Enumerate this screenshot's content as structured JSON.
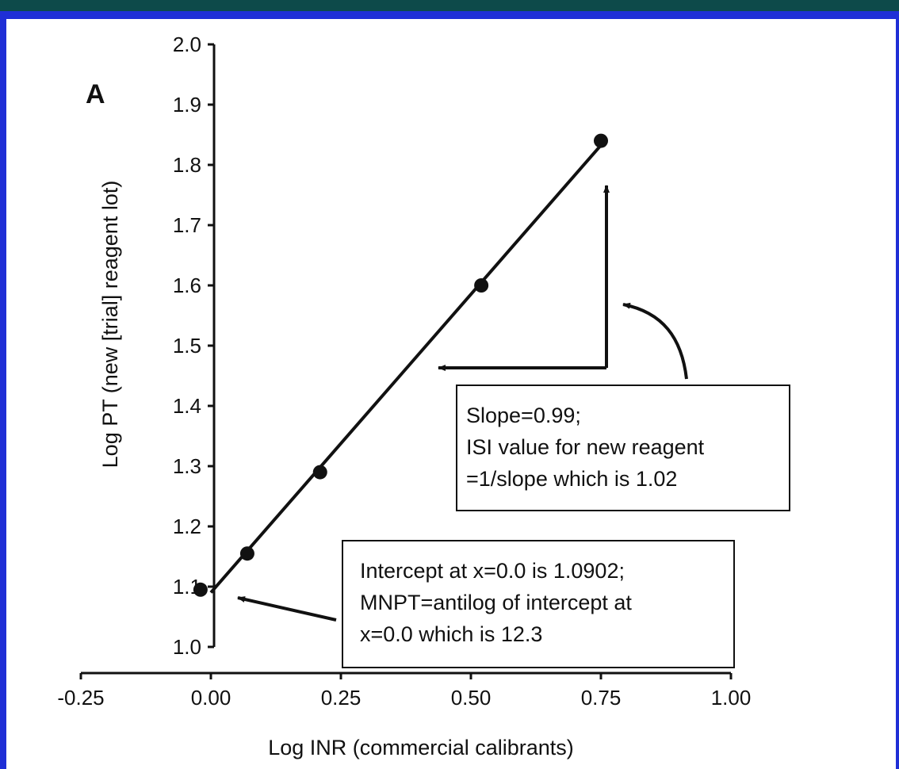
{
  "colors": {
    "frame_border": "#1f2fd6",
    "top_bar": "#0d4a4a",
    "ink": "#111111",
    "background": "#ffffff"
  },
  "chart_data": {
    "type": "scatter",
    "panel_label": "A",
    "title": "",
    "xlabel": "Log INR (commercial calibrants)",
    "ylabel": "Log PT (new [trial] reagent lot)",
    "xlim": [
      -0.25,
      1.0
    ],
    "ylim": [
      1.0,
      2.0
    ],
    "x_ticks": [
      -0.25,
      0.0,
      0.25,
      0.5,
      0.75,
      1.0
    ],
    "x_tick_labels": [
      "-0.25",
      "0.00",
      "0.25",
      "0.50",
      "0.75",
      "1.00"
    ],
    "y_ticks": [
      1.0,
      1.1,
      1.2,
      1.3,
      1.4,
      1.5,
      1.6,
      1.7,
      1.8,
      1.9,
      2.0
    ],
    "y_tick_labels": [
      "1.0",
      "1.1",
      "1.2",
      "1.3",
      "1.4",
      "1.5",
      "1.6",
      "1.7",
      "1.8",
      "1.9",
      "2.0"
    ],
    "grid": false,
    "series": [
      {
        "values": [
          {
            "x": -0.02,
            "y": 1.095
          },
          {
            "x": 0.07,
            "y": 1.155
          },
          {
            "x": 0.21,
            "y": 1.29
          },
          {
            "x": 0.52,
            "y": 1.6
          },
          {
            "x": 0.75,
            "y": 1.84
          }
        ]
      }
    ],
    "fit_line": {
      "slope": 0.99,
      "intercept": 1.0902,
      "x_range": [
        0.0,
        0.75
      ]
    },
    "annotations": {
      "slope_box": [
        "Slope=0.99;",
        "ISI value for new reagent",
        "=1/slope which is 1.02"
      ],
      "intercept_box": [
        "Intercept at x=0.0 is 1.0902;",
        "MNPT=antilog of intercept at",
        "x=0.0 which is 12.3"
      ]
    }
  }
}
